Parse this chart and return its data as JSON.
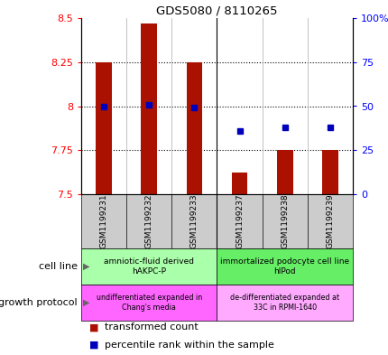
{
  "title": "GDS5080 / 8110265",
  "samples": [
    "GSM1199231",
    "GSM1199232",
    "GSM1199233",
    "GSM1199237",
    "GSM1199238",
    "GSM1199239"
  ],
  "transformed_count": [
    8.25,
    8.47,
    8.25,
    7.625,
    7.75,
    7.75
  ],
  "percentile_rank_pct": [
    50,
    51,
    49,
    36,
    38,
    38
  ],
  "ylim_left": [
    7.5,
    8.5
  ],
  "ylim_right": [
    0,
    100
  ],
  "yticks_left": [
    7.5,
    7.75,
    8.0,
    8.25,
    8.5
  ],
  "yticks_left_labels": [
    "7.5",
    "7.75",
    "8",
    "8.25",
    "8.5"
  ],
  "yticks_right": [
    0,
    25,
    50,
    75,
    100
  ],
  "yticks_right_labels": [
    "0",
    "25",
    "50",
    "75",
    "100%"
  ],
  "bar_color": "#aa1100",
  "point_color": "#0000bb",
  "bar_bottom": 7.5,
  "cell_line_groups": [
    {
      "label": "amniotic-fluid derived\nhAKPC-P",
      "samples_idx": [
        0,
        1,
        2
      ],
      "color": "#aaffaa"
    },
    {
      "label": "immortalized podocyte cell line\nhIPod",
      "samples_idx": [
        3,
        4,
        5
      ],
      "color": "#66ee66"
    }
  ],
  "growth_protocol_groups": [
    {
      "label": "undifferentiated expanded in\nChang's media",
      "samples_idx": [
        0,
        1,
        2
      ],
      "color": "#ff66ff"
    },
    {
      "label": "de-differentiated expanded at\n33C in RPMI-1640",
      "samples_idx": [
        3,
        4,
        5
      ],
      "color": "#ffaaff"
    }
  ],
  "cell_line_label": "cell line",
  "growth_protocol_label": "growth protocol",
  "legend_red": "transformed count",
  "legend_blue": "percentile rank within the sample",
  "dotted_yticks": [
    7.75,
    8.0,
    8.25
  ],
  "sample_bg_color": "#cccccc",
  "bar_width": 0.35
}
